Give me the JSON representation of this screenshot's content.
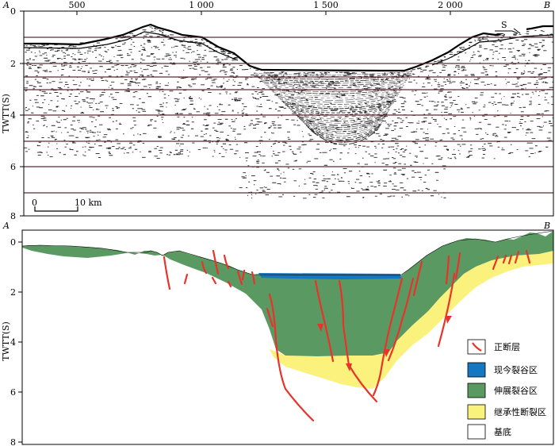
{
  "top_panel": {
    "point_a": "A",
    "point_b": "B",
    "x_ticks": [
      "500",
      "1 000",
      "1 500",
      "2 000"
    ],
    "y_ticks": [
      "0",
      "2",
      "4",
      "6",
      "8"
    ],
    "y_label": "TWTT(S)",
    "scale_zero": "0",
    "scale_length": "10 km",
    "direction_label": "S"
  },
  "bottom_panel": {
    "point_a": "A",
    "point_b": "B",
    "y_ticks": [
      "0",
      "2",
      "4",
      "6",
      "8"
    ],
    "y_label": "TWTT(S)"
  },
  "legend": [
    {
      "label": "正断层",
      "swatch": "fault",
      "color": "#e8332a"
    },
    {
      "label": "现今裂谷区",
      "swatch": "fill",
      "color": "#1577c2"
    },
    {
      "label": "伸展裂谷区",
      "swatch": "fill",
      "color": "#5a9a62"
    },
    {
      "label": "继承性断裂区",
      "swatch": "fill",
      "color": "#fbf27e"
    },
    {
      "label": "基底",
      "swatch": "fill",
      "color": "#ffffff"
    }
  ],
  "colors": {
    "fault": "#e8332a",
    "current_rift": "#1577c2",
    "extensional_rift": "#5a9a62",
    "inherited_fault_zone": "#fbf27e",
    "horizon_line": "#5a2d34"
  }
}
